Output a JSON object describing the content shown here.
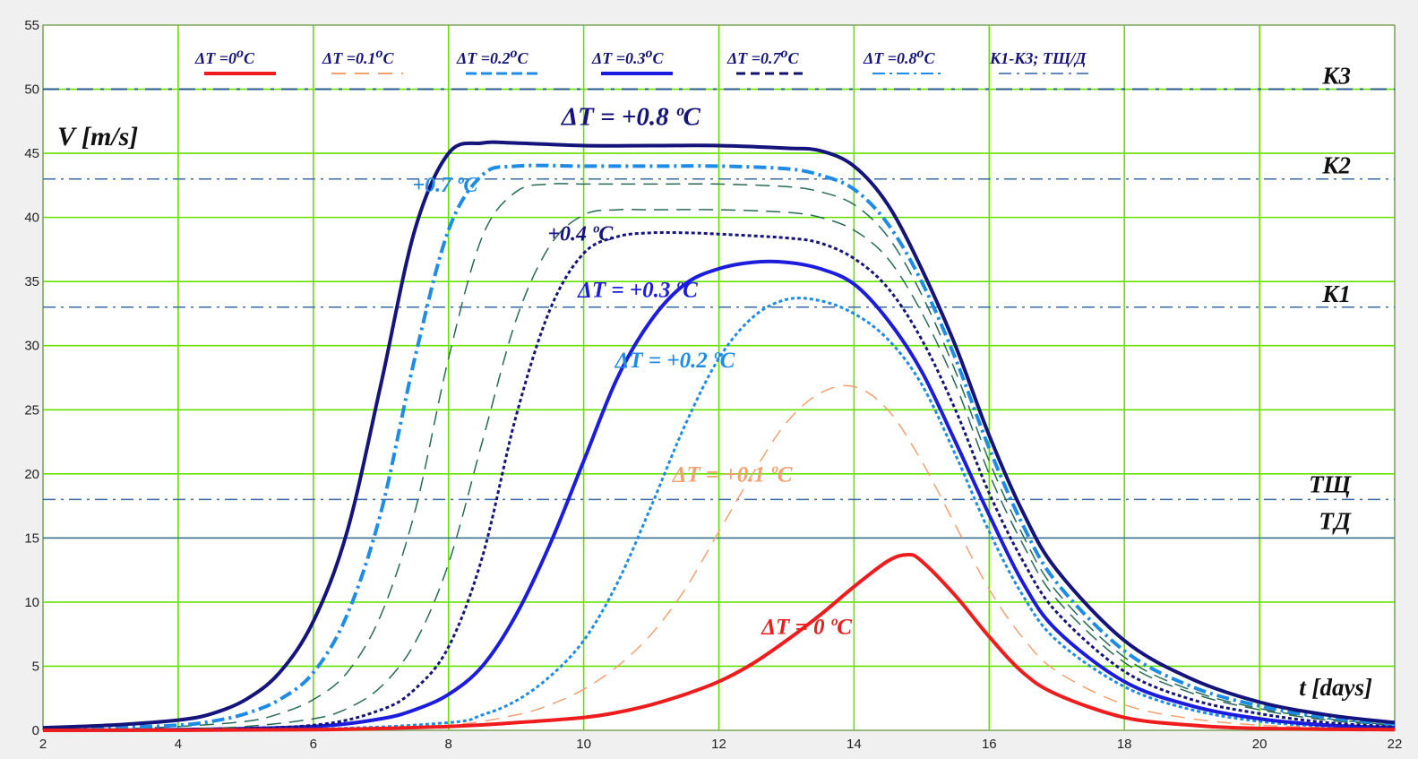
{
  "chart_data": {
    "type": "line",
    "xlabel": "t [days]",
    "ylabel": "V [m/s]",
    "xlim": [
      2,
      22
    ],
    "ylim": [
      0,
      55
    ],
    "x_ticks": [
      "2",
      "4",
      "6",
      "8",
      "10",
      "12",
      "14",
      "16",
      "18",
      "20",
      "22"
    ],
    "y_ticks": [
      "0",
      "5",
      "10",
      "15",
      "20",
      "25",
      "30",
      "35",
      "40",
      "45",
      "50",
      "55"
    ],
    "grid": true,
    "background": "#ffffff",
    "grid_color": "#66e000",
    "legend": [
      {
        "label": "ΔT =0",
        "sup": "o",
        "unit": "C",
        "color": "#ee1c1c",
        "dash": "solid",
        "width": 4
      },
      {
        "label": "ΔT =0.1",
        "sup": "o",
        "unit": "C",
        "color": "#f4a070",
        "dash": "16,10",
        "width": 2
      },
      {
        "label": "ΔT =0.2",
        "sup": "o",
        "unit": "C",
        "color": "#1e8ce6",
        "dash": "12,5",
        "width": 3
      },
      {
        "label": "ΔT =0.3",
        "sup": "o",
        "unit": "C",
        "color": "#1c1ce0",
        "dash": "solid",
        "width": 4
      },
      {
        "label": "ΔT =0.7",
        "sup": "o",
        "unit": "C",
        "color": "#101070",
        "dash": "10,6",
        "width": 3
      },
      {
        "label": "ΔT =0.8",
        "sup": "o",
        "unit": "C",
        "color": "#1e8ce6",
        "dash": "14,5,3,5",
        "width": 2
      },
      {
        "label": "К1-К3; ТЩ/Д",
        "sup": "",
        "unit": "",
        "color": "#3060a0",
        "dash": "14,6,3,6",
        "width": 1.5
      }
    ],
    "reference_lines": [
      {
        "label": "К3",
        "y": 50,
        "color": "#2a5a8a",
        "dash": "18,8,4,8",
        "width": 2
      },
      {
        "label": "К2",
        "y": 43,
        "color": "#3a6aa0",
        "dash": "14,6,3,6",
        "width": 1.5
      },
      {
        "label": "К1",
        "y": 33,
        "color": "#3a6aa0",
        "dash": "14,6,3,6",
        "width": 1.5
      },
      {
        "label": "ТЩ",
        "y": 18,
        "color": "#3a6aa0",
        "dash": "14,6,3,6",
        "width": 1.5
      },
      {
        "label": "ТД",
        "y": 15,
        "color": "#3a6aa0",
        "dash": "solid",
        "width": 1.5
      }
    ],
    "series": [
      {
        "name": "ΔT = +0.8 ºC",
        "color": "#14147a",
        "dash": "solid",
        "width": 4,
        "x": [
          2,
          3,
          4,
          4.5,
          5,
          5.5,
          6,
          6.5,
          7,
          7.5,
          8,
          8.5,
          9,
          10,
          11,
          12,
          13,
          13.5,
          14,
          14.5,
          15,
          15.5,
          16,
          16.5,
          17,
          18,
          19,
          20,
          21,
          22
        ],
        "y": [
          0.2,
          0.4,
          0.8,
          1.3,
          2.4,
          4.5,
          8.5,
          15.5,
          27,
          39,
          45,
          45.8,
          45.8,
          45.6,
          45.6,
          45.6,
          45.4,
          45.2,
          44,
          41,
          36,
          30,
          23,
          17,
          12.5,
          7,
          4,
          2.2,
          1.2,
          0.6
        ]
      },
      {
        "name": "+0.7 ºC",
        "color": "#1e8ce6",
        "dash": "14,5,3,5",
        "width": 4,
        "x": [
          2,
          3,
          4,
          4.5,
          5,
          5.5,
          6,
          6.5,
          7,
          7.5,
          8,
          8.5,
          9,
          10,
          11,
          12,
          13,
          13.5,
          14,
          14.5,
          15,
          15.5,
          16,
          16.5,
          17,
          18,
          19,
          20,
          21,
          22
        ],
        "y": [
          0.1,
          0.2,
          0.4,
          0.7,
          1.3,
          2.4,
          4.5,
          9,
          17,
          29,
          39,
          43.3,
          44,
          44,
          44,
          44,
          43.8,
          43.3,
          42.2,
          39.5,
          35,
          29,
          22,
          16,
          11.5,
          6.2,
          3.4,
          1.9,
          1,
          0.5
        ]
      },
      {
        "name": "",
        "color": "#2a6a55",
        "dash": "16,9",
        "width": 1.5,
        "x": [
          2,
          3,
          4,
          5,
          5.5,
          6,
          6.5,
          7,
          7.5,
          8,
          8.5,
          9,
          9.5,
          10,
          11,
          12,
          13,
          13.5,
          14,
          14.5,
          15,
          15.5,
          16,
          16.5,
          17,
          18,
          19,
          20,
          21,
          22
        ],
        "y": [
          0.05,
          0.1,
          0.3,
          0.7,
          1.3,
          2.4,
          4.5,
          9,
          17,
          29,
          38.5,
          42,
          42.6,
          42.6,
          42.6,
          42.6,
          42.4,
          42,
          41,
          38.5,
          34,
          28,
          21,
          15.2,
          10.8,
          5.7,
          3.1,
          1.7,
          0.9,
          0.4
        ]
      },
      {
        "name": "",
        "color": "#2a6a55",
        "dash": "16,9",
        "width": 1.5,
        "x": [
          2,
          4,
          5,
          6,
          6.5,
          7,
          7.5,
          8,
          8.5,
          9,
          9.5,
          10,
          10.5,
          11,
          12,
          13,
          13.5,
          14,
          14.5,
          15,
          15.5,
          16,
          16.5,
          17,
          18,
          19,
          20,
          21,
          22
        ],
        "y": [
          0,
          0.1,
          0.3,
          0.9,
          1.7,
          3.4,
          6.8,
          13,
          22.5,
          32,
          37.8,
          40.2,
          40.6,
          40.6,
          40.6,
          40.4,
          40,
          39,
          36.8,
          32.6,
          27,
          20,
          14.5,
          10.2,
          5.3,
          2.9,
          1.6,
          0.8,
          0.4
        ]
      },
      {
        "name": "+0.4 ºC",
        "color": "#14147a",
        "dash": "4,3",
        "width": 3,
        "x": [
          2,
          4,
          6,
          7,
          7.5,
          8,
          8.5,
          9,
          9.5,
          10,
          10.5,
          11,
          11.5,
          12,
          13,
          13.5,
          14,
          14.5,
          15,
          15.5,
          16,
          16.5,
          17,
          18,
          19,
          20,
          21,
          22
        ],
        "y": [
          0,
          0.05,
          0.4,
          1.6,
          3.2,
          6.5,
          13.5,
          24.5,
          32.8,
          37.2,
          38.5,
          38.8,
          38.8,
          38.7,
          38.4,
          38,
          36.8,
          34.5,
          30.5,
          25,
          18.5,
          13.2,
          9.2,
          4.6,
          2.4,
          1.3,
          0.6,
          0.3
        ]
      },
      {
        "name": "ΔT = +0.3 ºC",
        "color": "#1c1cdc",
        "dash": "solid",
        "width": 4,
        "x": [
          2,
          4,
          6,
          7,
          7.5,
          8,
          8.5,
          9,
          9.5,
          10,
          10.5,
          11,
          11.5,
          12,
          12.5,
          13,
          13.5,
          14,
          14.5,
          15,
          15.5,
          16,
          16.5,
          17,
          18,
          19,
          20,
          21,
          22
        ],
        "y": [
          0,
          0.05,
          0.3,
          0.9,
          1.6,
          2.8,
          5,
          9,
          14.5,
          21,
          27.5,
          32,
          34.8,
          36,
          36.5,
          36.5,
          36,
          34.8,
          32,
          28,
          22.5,
          16.8,
          11.5,
          7.8,
          3.8,
          1.9,
          0.9,
          0.4,
          0.2
        ]
      },
      {
        "name": "ΔT = +0.2 ºC",
        "color": "#1e8ce6",
        "dash": "4,3",
        "width": 3,
        "x": [
          2,
          6,
          8,
          8.5,
          9,
          9.5,
          10,
          10.5,
          11,
          11.5,
          12,
          12.5,
          13,
          13.5,
          14,
          14.5,
          15,
          15.5,
          16,
          16.5,
          17,
          18,
          19,
          20,
          21,
          22
        ],
        "y": [
          0,
          0.1,
          0.6,
          1.2,
          2.3,
          4.2,
          7,
          11.5,
          17.5,
          23.8,
          29,
          32.2,
          33.6,
          33.5,
          32.5,
          30.5,
          27,
          21.5,
          15.5,
          10.5,
          7,
          3.4,
          1.6,
          0.7,
          0.3,
          0.1
        ]
      },
      {
        "name": "ΔT = +0.1 ºC",
        "color": "#f4a070",
        "dash": "16,10",
        "width": 1.5,
        "x": [
          2,
          6,
          8,
          9,
          9.5,
          10,
          10.5,
          11,
          11.5,
          12,
          12.5,
          13,
          13.5,
          14,
          14.5,
          15,
          15.5,
          16,
          16.5,
          17,
          18,
          19,
          20,
          21,
          22
        ],
        "y": [
          0,
          0.05,
          0.4,
          1.2,
          2,
          3.2,
          5,
          7.5,
          11,
          15.5,
          20,
          24,
          26.3,
          26.8,
          25,
          21,
          16,
          11,
          7.2,
          4.6,
          2,
          0.9,
          0.4,
          0.2,
          0.1
        ]
      },
      {
        "name": "ΔT = 0 ºC",
        "color": "#ee1c1c",
        "dash": "solid",
        "width": 4,
        "x": [
          2,
          6,
          8,
          9,
          10,
          10.5,
          11,
          11.5,
          12,
          12.5,
          13,
          13.5,
          14,
          14.5,
          14.8,
          15,
          15.5,
          16,
          16.5,
          17,
          18,
          19,
          20,
          22
        ],
        "y": [
          0,
          0.05,
          0.3,
          0.6,
          1,
          1.4,
          2,
          2.8,
          3.8,
          5.2,
          7,
          9,
          11.2,
          13.2,
          13.7,
          13.2,
          10.5,
          7.3,
          4.5,
          2.8,
          1,
          0.4,
          0.15,
          0.05
        ]
      }
    ],
    "annotations": [
      {
        "text": "ΔT = +0.8 ºC",
        "x": 10.7,
        "y": 47.2,
        "color": "#14147a",
        "size": 29
      },
      {
        "text": "+0.7 ºC",
        "x": 7.95,
        "y": 42,
        "color": "#1e8ce6",
        "size": 24
      },
      {
        "text": "+0.4 ºC",
        "x": 9.95,
        "y": 38.2,
        "color": "#14147a",
        "size": 24
      },
      {
        "text": "ΔT = +0.3 ºC",
        "x": 10.8,
        "y": 33.8,
        "color": "#1c1cdc",
        "size": 25
      },
      {
        "text": "ΔT = +0.2 ºC",
        "x": 11.35,
        "y": 28.3,
        "color": "#1e8ce6",
        "size": 25
      },
      {
        "text": "ΔT = +0.1 ºC",
        "x": 12.2,
        "y": 19.4,
        "color": "#f4a070",
        "size": 25
      },
      {
        "text": "ΔT = 0 ºC",
        "x": 13.3,
        "y": 7.5,
        "color": "#ee1c1c",
        "size": 25
      }
    ]
  }
}
